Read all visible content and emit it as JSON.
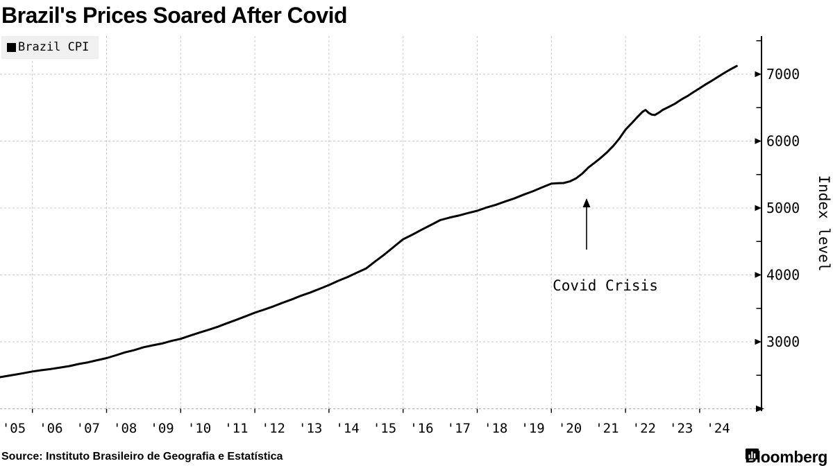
{
  "title": "Brazil's Prices Soared After Covid",
  "legend": {
    "label": "Brazil CPI",
    "swatch_color": "#000000"
  },
  "annotation": {
    "text": "Covid Crisis"
  },
  "source": "Source: Instituto Brasileiro de Geografia e Estatística",
  "branding": {
    "name": "Bloomberg"
  },
  "colors": {
    "line": "#000000",
    "grid": "#c9c9c9",
    "legend_bg": "#f0f0f0"
  },
  "chart_data": {
    "type": "line",
    "title": "Brazil's Prices Soared After Covid",
    "xlabel": "",
    "ylabel": "Index level",
    "legend_position": "top-left",
    "grid": "dashed",
    "ylim": [
      2000,
      7570
    ],
    "xlim": [
      2005.0,
      2025.66
    ],
    "y_ticks_major": [
      3000,
      4000,
      5000,
      6000,
      7000
    ],
    "y_tick_labels": [
      "3000",
      "4000",
      "5000",
      "6000",
      "7000"
    ],
    "y_ticks_minor": [
      2500,
      3500,
      4500,
      5500,
      6500,
      7500
    ],
    "x_tick_labels": [
      "'05",
      "'06",
      "'07",
      "'08",
      "'09",
      "'10",
      "'11",
      "'12",
      "'13",
      "'14",
      "'15",
      "'16",
      "'17",
      "'18",
      "'19",
      "'20",
      "'21",
      "'22",
      "'23",
      "'24"
    ],
    "x_tick_years": [
      2005.5,
      2006.5,
      2007.5,
      2008.5,
      2009.5,
      2010.5,
      2011.5,
      2012.5,
      2013.5,
      2014.5,
      2015.5,
      2016.5,
      2017.5,
      2018.5,
      2019.5,
      2020.5,
      2021.5,
      2022.5,
      2023.5,
      2024.5
    ],
    "grid_years": [
      2006,
      2008,
      2010,
      2012,
      2014,
      2016,
      2018,
      2020,
      2022,
      2024
    ],
    "annotation": {
      "text": "Covid Crisis",
      "arrow_x_year": 2020.95,
      "points_at_value": 5400
    },
    "series": [
      {
        "name": "Brazil CPI",
        "points": [
          [
            2005.0,
            2460
          ],
          [
            2005.25,
            2483
          ],
          [
            2005.5,
            2507
          ],
          [
            2005.75,
            2531
          ],
          [
            2006.0,
            2556
          ],
          [
            2006.25,
            2576
          ],
          [
            2006.5,
            2594
          ],
          [
            2006.75,
            2616
          ],
          [
            2007.0,
            2637
          ],
          [
            2007.25,
            2668
          ],
          [
            2007.5,
            2693
          ],
          [
            2007.75,
            2725
          ],
          [
            2008.0,
            2756
          ],
          [
            2008.25,
            2798
          ],
          [
            2008.5,
            2842
          ],
          [
            2008.75,
            2877
          ],
          [
            2009.0,
            2919
          ],
          [
            2009.25,
            2948
          ],
          [
            2009.5,
            2975
          ],
          [
            2009.75,
            3013
          ],
          [
            2010.0,
            3045
          ],
          [
            2010.25,
            3091
          ],
          [
            2010.5,
            3137
          ],
          [
            2010.75,
            3179
          ],
          [
            2011.0,
            3225
          ],
          [
            2011.25,
            3278
          ],
          [
            2011.5,
            3328
          ],
          [
            2011.75,
            3381
          ],
          [
            2012.0,
            3435
          ],
          [
            2012.25,
            3481
          ],
          [
            2012.5,
            3530
          ],
          [
            2012.75,
            3583
          ],
          [
            2013.0,
            3634
          ],
          [
            2013.25,
            3690
          ],
          [
            2013.5,
            3738
          ],
          [
            2013.75,
            3793
          ],
          [
            2014.0,
            3849
          ],
          [
            2014.25,
            3912
          ],
          [
            2014.5,
            3968
          ],
          [
            2014.75,
            4032
          ],
          [
            2015.0,
            4095
          ],
          [
            2015.25,
            4203
          ],
          [
            2015.5,
            4307
          ],
          [
            2015.75,
            4420
          ],
          [
            2016.0,
            4533
          ],
          [
            2016.25,
            4601
          ],
          [
            2016.5,
            4676
          ],
          [
            2016.75,
            4746
          ],
          [
            2017.0,
            4819
          ],
          [
            2017.25,
            4856
          ],
          [
            2017.5,
            4887
          ],
          [
            2017.75,
            4924
          ],
          [
            2018.0,
            4959
          ],
          [
            2018.25,
            5007
          ],
          [
            2018.5,
            5048
          ],
          [
            2018.75,
            5096
          ],
          [
            2019.0,
            5143
          ],
          [
            2019.25,
            5199
          ],
          [
            2019.5,
            5250
          ],
          [
            2019.75,
            5308
          ],
          [
            2020.0,
            5364
          ],
          [
            2020.17,
            5370
          ],
          [
            2020.33,
            5373
          ],
          [
            2020.5,
            5398
          ],
          [
            2020.67,
            5445
          ],
          [
            2020.83,
            5512
          ],
          [
            2021.0,
            5605
          ],
          [
            2021.17,
            5678
          ],
          [
            2021.33,
            5748
          ],
          [
            2021.5,
            5832
          ],
          [
            2021.67,
            5928
          ],
          [
            2021.83,
            6035
          ],
          [
            2022.0,
            6171
          ],
          [
            2022.17,
            6268
          ],
          [
            2022.33,
            6365
          ],
          [
            2022.46,
            6438
          ],
          [
            2022.54,
            6465
          ],
          [
            2022.63,
            6420
          ],
          [
            2022.71,
            6396
          ],
          [
            2022.79,
            6390
          ],
          [
            2022.92,
            6432
          ],
          [
            2023.0,
            6465
          ],
          [
            2023.17,
            6512
          ],
          [
            2023.33,
            6558
          ],
          [
            2023.5,
            6620
          ],
          [
            2023.67,
            6673
          ],
          [
            2023.83,
            6731
          ],
          [
            2024.0,
            6790
          ],
          [
            2024.17,
            6851
          ],
          [
            2024.33,
            6903
          ],
          [
            2024.5,
            6962
          ],
          [
            2024.67,
            7021
          ],
          [
            2024.83,
            7072
          ],
          [
            2025.0,
            7122
          ]
        ]
      }
    ]
  }
}
